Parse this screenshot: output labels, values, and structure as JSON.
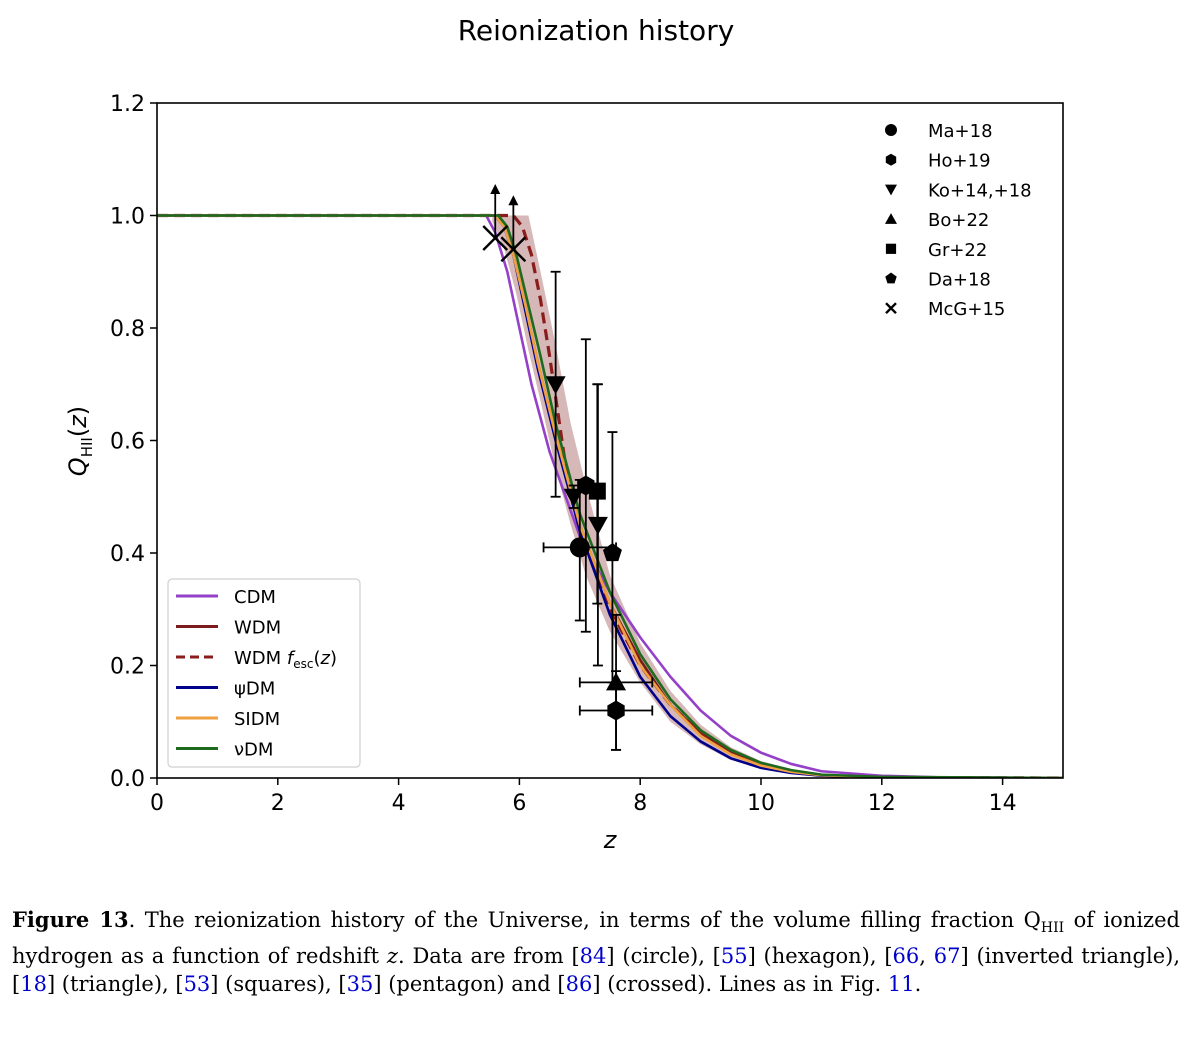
{
  "chart_data": {
    "type": "line",
    "title": "Reionization history",
    "xlabel": "z",
    "ylabel": "Q_HII(z)",
    "xlim": [
      0,
      15
    ],
    "ylim": [
      0,
      1.2
    ],
    "xticks": [
      0,
      2,
      4,
      6,
      8,
      10,
      12,
      14
    ],
    "yticks": [
      0.0,
      0.2,
      0.4,
      0.6,
      0.8,
      1.0,
      1.2
    ],
    "xtick_labels": [
      "0",
      "2",
      "4",
      "6",
      "8",
      "10",
      "12",
      "14"
    ],
    "ytick_labels": [
      "0.0",
      "0.2",
      "0.4",
      "0.6",
      "0.8",
      "1.0",
      "1.2"
    ],
    "legend_lines_position": "lower-left",
    "legend_markers_position": "top-right",
    "series": [
      {
        "name": "CDM",
        "color": "#9440c8",
        "dash": false,
        "x": [
          0,
          5.45,
          5.6,
          5.8,
          6.0,
          6.2,
          6.5,
          7.0,
          7.5,
          8.0,
          8.5,
          9.0,
          9.5,
          10.0,
          10.5,
          11.0,
          12.0,
          13.0,
          15.0
        ],
        "y": [
          1.0,
          1.0,
          0.97,
          0.9,
          0.8,
          0.7,
          0.58,
          0.43,
          0.33,
          0.25,
          0.18,
          0.12,
          0.075,
          0.045,
          0.025,
          0.012,
          0.004,
          0.001,
          0.0
        ]
      },
      {
        "name": "WDM",
        "color": "#7b1c1c",
        "dash": false,
        "x": [
          0,
          5.6,
          5.75,
          5.9,
          6.1,
          6.3,
          6.6,
          7.0,
          7.5,
          8.0,
          8.5,
          9.0,
          9.5,
          10.0,
          10.5,
          11.0,
          12.0,
          15.0
        ],
        "y": [
          1.0,
          1.0,
          0.98,
          0.93,
          0.84,
          0.74,
          0.61,
          0.45,
          0.31,
          0.21,
          0.13,
          0.08,
          0.045,
          0.025,
          0.012,
          0.005,
          0.001,
          0.0
        ]
      },
      {
        "name": "WDM f_esc(z)",
        "color": "#8a1c1c",
        "dash": true,
        "x": [
          0,
          5.9,
          6.05,
          6.2,
          6.35,
          6.5,
          6.65,
          6.8,
          7.0,
          7.5,
          8.0,
          8.5,
          9.0,
          9.5,
          10.0,
          10.5,
          11.0,
          12.0,
          15.0
        ],
        "y": [
          1.0,
          1.0,
          0.98,
          0.93,
          0.85,
          0.75,
          0.64,
          0.53,
          0.44,
          0.3,
          0.2,
          0.13,
          0.08,
          0.045,
          0.025,
          0.012,
          0.005,
          0.001,
          0.0
        ]
      },
      {
        "name": "ψDM",
        "color": "#00008b",
        "dash": false,
        "x": [
          0,
          5.6,
          5.75,
          5.9,
          6.1,
          6.3,
          6.6,
          7.0,
          7.5,
          8.0,
          8.5,
          9.0,
          9.5,
          10.0,
          10.5,
          11.0,
          12.0,
          15.0
        ],
        "y": [
          1.0,
          1.0,
          0.98,
          0.93,
          0.83,
          0.73,
          0.6,
          0.44,
          0.29,
          0.18,
          0.11,
          0.065,
          0.035,
          0.018,
          0.009,
          0.004,
          0.001,
          0.0
        ]
      },
      {
        "name": "SIDM",
        "color": "#f0a040",
        "dash": false,
        "x": [
          0,
          5.6,
          5.75,
          5.9,
          6.1,
          6.3,
          6.6,
          7.0,
          7.5,
          8.0,
          8.5,
          9.0,
          9.5,
          10.0,
          10.5,
          11.0,
          12.0,
          15.0
        ],
        "y": [
          1.0,
          1.0,
          0.98,
          0.93,
          0.84,
          0.74,
          0.61,
          0.45,
          0.31,
          0.2,
          0.13,
          0.075,
          0.042,
          0.022,
          0.011,
          0.005,
          0.001,
          0.0
        ]
      },
      {
        "name": "νDM",
        "color": "#1e6b1e",
        "dash": false,
        "x": [
          0,
          5.65,
          5.8,
          5.95,
          6.15,
          6.35,
          6.6,
          7.0,
          7.5,
          8.0,
          8.5,
          9.0,
          9.5,
          10.0,
          10.5,
          11.0,
          12.0,
          15.0
        ],
        "y": [
          1.0,
          1.0,
          0.98,
          0.93,
          0.84,
          0.75,
          0.63,
          0.47,
          0.33,
          0.22,
          0.14,
          0.085,
          0.05,
          0.027,
          0.014,
          0.006,
          0.002,
          0.0
        ]
      }
    ],
    "band": {
      "color": "#c9a0a0",
      "x": [
        5.55,
        5.75,
        5.95,
        6.15,
        6.35,
        6.6,
        6.85,
        7.1,
        7.5,
        8.0,
        8.5,
        9.0,
        9.5,
        10.0,
        10.5,
        11.0,
        12.0,
        15.0
      ],
      "upper": [
        1.0,
        1.0,
        1.0,
        1.0,
        0.9,
        0.77,
        0.63,
        0.52,
        0.36,
        0.24,
        0.155,
        0.095,
        0.055,
        0.03,
        0.016,
        0.007,
        0.002,
        0.0
      ],
      "lower": [
        0.99,
        0.94,
        0.86,
        0.76,
        0.67,
        0.55,
        0.45,
        0.36,
        0.26,
        0.17,
        0.1,
        0.06,
        0.032,
        0.017,
        0.008,
        0.003,
        0.001,
        0.0
      ]
    },
    "data_points": [
      {
        "label": "Ma+18",
        "marker": "circle",
        "x": 7.0,
        "y": 0.41,
        "yerr_low": 0.13,
        "yerr_high": 0.12,
        "xerr_low": 0.6,
        "xerr_high": 0.6
      },
      {
        "label": "Ho+19",
        "marker": "hexagon",
        "x": 7.6,
        "y": 0.12,
        "yerr_low": 0.07,
        "yerr_high": 0.07,
        "xerr_low": 0.6,
        "xerr_high": 0.6
      },
      {
        "label": "Ho+19",
        "marker": "hexagon",
        "x": 7.1,
        "y": 0.52,
        "yerr_low": 0.26,
        "yerr_high": 0.26
      },
      {
        "label": "Ko+14,+18",
        "marker": "triangle-down",
        "x": 6.6,
        "y": 0.7,
        "yerr_low": 0.2,
        "yerr_high": 0.2
      },
      {
        "label": "Ko+14,+18",
        "marker": "triangle-down",
        "x": 6.9,
        "y": 0.5,
        "yerr_low": 0.02,
        "yerr_high": 0.02
      },
      {
        "label": "Ko+14,+18",
        "marker": "triangle-down",
        "x": 7.3,
        "y": 0.45,
        "yerr_low": 0.25,
        "yerr_high": 0.25
      },
      {
        "label": "Bo+22",
        "marker": "triangle-up",
        "x": 7.6,
        "y": 0.17,
        "yerr_low": 0.12,
        "yerr_high": 0.12,
        "xerr_low": 0.6,
        "xerr_high": 0.6
      },
      {
        "label": "Gr+22",
        "marker": "square",
        "x": 7.29,
        "y": 0.51,
        "yerr_low": 0.2,
        "yerr_high": 0.19
      },
      {
        "label": "Da+18",
        "marker": "pentagon",
        "x": 7.54,
        "y": 0.4,
        "yerr_low": 0.23,
        "yerr_high": 0.215
      },
      {
        "label": "McG+15",
        "marker": "cross",
        "x": 5.6,
        "y": 0.96,
        "lower_limit": true
      },
      {
        "label": "McG+15",
        "marker": "cross",
        "x": 5.9,
        "y": 0.94,
        "lower_limit": true
      }
    ],
    "marker_legend": [
      {
        "label": "Ma+18",
        "marker": "circle"
      },
      {
        "label": "Ho+19",
        "marker": "hexagon"
      },
      {
        "label": "Ko+14,+18",
        "marker": "triangle-down"
      },
      {
        "label": "Bo+22",
        "marker": "triangle-up"
      },
      {
        "label": "Gr+22",
        "marker": "square"
      },
      {
        "label": "Da+18",
        "marker": "pentagon"
      },
      {
        "label": "McG+15",
        "marker": "cross"
      }
    ]
  },
  "caption": {
    "label": "Figure 13",
    "text_1": ". The reionization history of the Universe, in terms of the volume filling fraction Q",
    "text_sub": "HII",
    "text_2": " of ionized hydrogen as a function of redshift ",
    "text_z": "z",
    "text_3": ". Data are from [",
    "ref_84": "84",
    "text_4": "] (circle), [",
    "ref_55": "55",
    "text_5": "] (hexagon), [",
    "ref_66": "66",
    "text_6": ", ",
    "ref_67": "67",
    "text_7": "] (inverted triangle), [",
    "ref_18": "18",
    "text_8": "] (triangle), [",
    "ref_53": "53",
    "text_9": "] (squares), [",
    "ref_35": "35",
    "text_10": "] (pentagon) and [",
    "ref_86": "86",
    "text_11": "] (crossed). Lines as in Fig. ",
    "ref_11": "11",
    "text_12": "."
  }
}
